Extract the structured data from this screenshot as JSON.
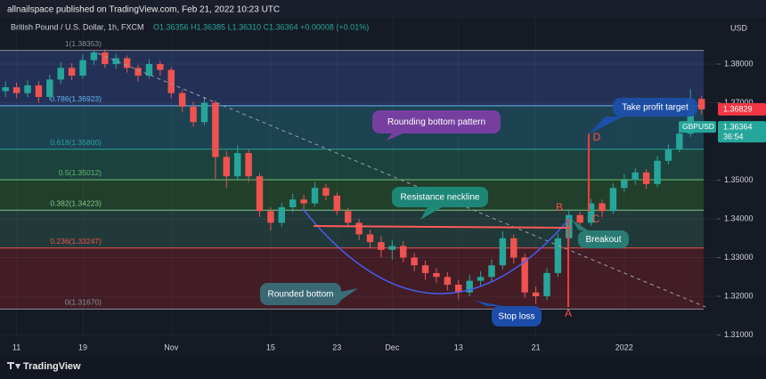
{
  "header": {
    "publisher": "allnailspace published on TradingView.com, Feb 21, 2022 10:23 UTC",
    "brand": "TradingView"
  },
  "chart_data": {
    "type": "candlestick",
    "symbol": "British Pound / U.S. Dollar, 1h, FXCM",
    "ohlc_text": "O1.36356 H1.36385 L1.36310 C1.36364 +0.00008 (+0.01%)",
    "currency": "USD",
    "up_color": "#26a69a",
    "down_color": "#ef5350",
    "xlim": [
      -0.5,
      64.4
    ],
    "xticks": [
      {
        "value": 1,
        "label": "11"
      },
      {
        "value": 7,
        "label": "19"
      },
      {
        "value": 15,
        "label": "Nov"
      },
      {
        "value": 24,
        "label": "15"
      },
      {
        "value": 30,
        "label": "23"
      },
      {
        "value": 35,
        "label": "Dec"
      },
      {
        "value": 41,
        "label": "13"
      },
      {
        "value": 48,
        "label": "21"
      },
      {
        "value": 56,
        "label": "2022"
      }
    ],
    "ylim": [
      1.3092,
      1.39195
    ],
    "yticks": [
      {
        "value": 1.31,
        "label": "1.31000"
      },
      {
        "value": 1.32,
        "label": "1.32000"
      },
      {
        "value": 1.33,
        "label": "1.33000"
      },
      {
        "value": 1.34,
        "label": "1.34000"
      },
      {
        "value": 1.35,
        "label": "1.35000"
      },
      {
        "value": 1.37,
        "label": "1.37000"
      },
      {
        "value": 1.38,
        "label": "1.38000"
      }
    ],
    "grid": true,
    "candles": {
      "open": [
        1.373,
        1.374,
        1.3725,
        1.3745,
        1.3715,
        1.376,
        1.379,
        1.377,
        1.381,
        1.383,
        1.38,
        1.3815,
        1.379,
        1.377,
        1.38,
        1.3785,
        1.3725,
        1.369,
        1.365,
        1.37,
        1.356,
        1.351,
        1.357,
        1.351,
        1.342,
        1.339,
        1.343,
        1.345,
        1.344,
        1.348,
        1.346,
        1.342,
        1.339,
        1.336,
        1.334,
        1.332,
        1.333,
        1.33,
        1.328,
        1.326,
        1.325,
        1.323,
        1.321,
        1.324,
        1.325,
        1.328,
        1.335,
        1.33,
        1.321,
        1.32,
        1.326,
        1.335,
        1.341,
        1.339,
        1.344,
        1.342,
        1.348,
        1.35,
        1.352,
        1.349,
        1.355,
        1.358,
        1.362,
        1.371
      ],
      "high": [
        1.3755,
        1.3752,
        1.3758,
        1.3756,
        1.3772,
        1.3805,
        1.3802,
        1.3825,
        1.3835,
        1.3838,
        1.3826,
        1.3822,
        1.3798,
        1.3812,
        1.3808,
        1.3792,
        1.3733,
        1.3702,
        1.3715,
        1.3706,
        1.3575,
        1.359,
        1.358,
        1.3518,
        1.343,
        1.3442,
        1.3465,
        1.3462,
        1.3495,
        1.349,
        1.3468,
        1.3428,
        1.34,
        1.3372,
        1.3355,
        1.3345,
        1.3342,
        1.3312,
        1.3292,
        1.3272,
        1.3262,
        1.3242,
        1.3255,
        1.3265,
        1.3295,
        1.3368,
        1.336,
        1.331,
        1.3225,
        1.3272,
        1.3362,
        1.3425,
        1.3418,
        1.3452,
        1.345,
        1.3492,
        1.3515,
        1.3532,
        1.3528,
        1.3562,
        1.3592,
        1.3635,
        1.3735,
        1.3718
      ],
      "low": [
        1.3715,
        1.3712,
        1.3714,
        1.37,
        1.3706,
        1.3748,
        1.3758,
        1.3762,
        1.3798,
        1.379,
        1.3788,
        1.3778,
        1.3755,
        1.3762,
        1.377,
        1.3712,
        1.3675,
        1.3638,
        1.3642,
        1.35,
        1.348,
        1.3502,
        1.3495,
        1.3405,
        1.337,
        1.338,
        1.3418,
        1.3425,
        1.3432,
        1.3448,
        1.341,
        1.3378,
        1.3345,
        1.3325,
        1.33,
        1.3295,
        1.3288,
        1.3265,
        1.3242,
        1.3235,
        1.3215,
        1.3192,
        1.32,
        1.3228,
        1.3238,
        1.327,
        1.3285,
        1.3195,
        1.318,
        1.319,
        1.325,
        1.334,
        1.3378,
        1.3382,
        1.3405,
        1.3412,
        1.347,
        1.3488,
        1.3478,
        1.3482,
        1.354,
        1.3572,
        1.3612,
        1.367
      ],
      "close": [
        1.374,
        1.3725,
        1.3745,
        1.3715,
        1.376,
        1.379,
        1.377,
        1.381,
        1.383,
        1.38,
        1.3815,
        1.379,
        1.377,
        1.38,
        1.3785,
        1.3725,
        1.369,
        1.365,
        1.37,
        1.356,
        1.351,
        1.357,
        1.351,
        1.342,
        1.339,
        1.343,
        1.345,
        1.344,
        1.348,
        1.346,
        1.342,
        1.339,
        1.336,
        1.334,
        1.332,
        1.333,
        1.33,
        1.328,
        1.326,
        1.325,
        1.323,
        1.321,
        1.324,
        1.325,
        1.328,
        1.335,
        1.33,
        1.321,
        1.32,
        1.326,
        1.335,
        1.341,
        1.339,
        1.344,
        1.342,
        1.348,
        1.35,
        1.352,
        1.349,
        1.355,
        1.358,
        1.362,
        1.371,
        1.3683
      ]
    },
    "fib_levels": [
      {
        "value": 1.38353,
        "label": "1(1.38353)",
        "color": "#8a8f9c",
        "band": "#27365f"
      },
      {
        "value": 1.36923,
        "label": "0.786(1.36923)",
        "color": "#64b5f6",
        "band": "#1f4a5a"
      },
      {
        "value": 1.358,
        "label": "0.618(1.35800)",
        "color": "#26a69a",
        "band": "#1d4a42"
      },
      {
        "value": 1.35012,
        "label": "0.5(1.35012)",
        "color": "#66bb6a",
        "band": "#24472e"
      },
      {
        "value": 1.34223,
        "label": "0.382(1.34223)",
        "color": "#81c784",
        "band": "#233f3c"
      },
      {
        "value": 1.33247,
        "label": "0.236(1.33247)",
        "color": "#ef5350",
        "band": "#4a1f27"
      },
      {
        "value": 1.3167,
        "label": "0(1.31670)",
        "color": "#8a8f9c"
      }
    ],
    "last_price": {
      "value": 1.36829,
      "label": "1.36829",
      "color": "#f23645"
    },
    "symbol_tag": {
      "name": "GBPUSD",
      "value": 1.36364,
      "label": "1.36364",
      "countdown": "36:54",
      "color": "#26a69a"
    },
    "annotations": [
      {
        "text": "Rounding bottom pattern",
        "color": "#7b3fa3"
      },
      {
        "text": "Take profit target",
        "color": "#1e4fa8"
      },
      {
        "text": "Resistance neckline",
        "color": "#1f8a7a"
      },
      {
        "text": "Breakout",
        "color": "#2a7f77"
      },
      {
        "text": "Rounded bottom",
        "color": "#3a6e78"
      },
      {
        "text": "Stop loss",
        "color": "#1d4fb0"
      },
      {
        "text": "A",
        "color": "#ff4d4d"
      },
      {
        "text": "B",
        "color": "#ff4d4d"
      },
      {
        "text": "C",
        "color": "#ff4d4d"
      },
      {
        "text": "D",
        "color": "#ff4d4d"
      }
    ]
  }
}
